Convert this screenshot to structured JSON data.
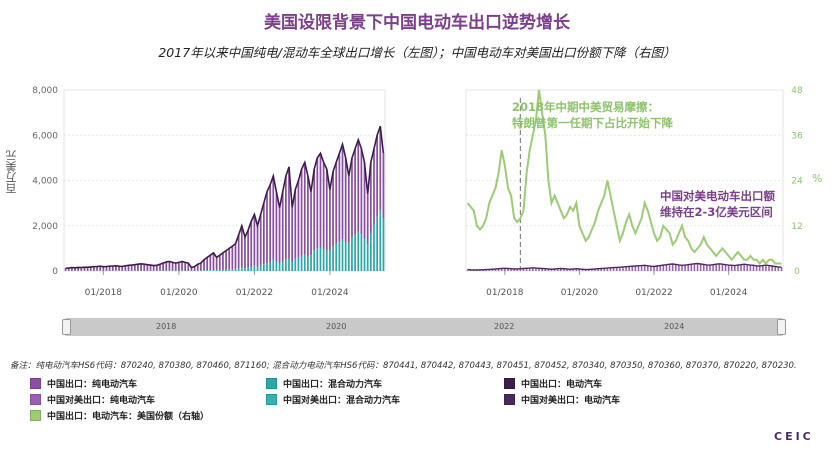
{
  "header": {
    "title": "美国设限背景下中国电动车出口逆势增长",
    "subtitle": "2017年以来中国纯电/混动车全球出口增长（左图）；中国电动车对美国出口份额下降（右图）"
  },
  "colors": {
    "bev_world": "#8a4fa3",
    "phev_world": "#2aa8a8",
    "ev_world": "#3b1f4a",
    "bev_us": "#9c5fb5",
    "phev_us": "#33b3b3",
    "ev_us": "#4a2a5c",
    "us_share": "#9ccc74"
  },
  "chart_data": [
    {
      "type": "bar",
      "name": "left-panel",
      "ylabel": "百万美元",
      "ylim": [
        0,
        8000
      ],
      "yticks": [
        "0",
        "2,000",
        "4,000",
        "6,000",
        "8,000"
      ],
      "xticks": [
        "01/2018",
        "01/2020",
        "01/2022",
        "01/2024"
      ],
      "x_range": [
        "01/2017",
        "06/2025"
      ],
      "series": [
        {
          "name": "中国出口：纯电动汽车",
          "type": "stacked-bar"
        },
        {
          "name": "中国出口：混合动力汽车",
          "type": "stacked-bar"
        },
        {
          "name": "中国出口：电动汽车",
          "type": "line"
        }
      ],
      "ev_total_monthly": [
        120,
        130,
        150,
        140,
        160,
        150,
        170,
        165,
        180,
        190,
        200,
        210,
        190,
        200,
        210,
        220,
        230,
        210,
        200,
        230,
        250,
        260,
        280,
        300,
        320,
        300,
        280,
        260,
        240,
        250,
        300,
        350,
        400,
        420,
        380,
        350,
        380,
        420,
        380,
        350,
        150,
        200,
        300,
        350,
        500,
        600,
        700,
        800,
        600,
        700,
        800,
        900,
        1000,
        1100,
        1200,
        1600,
        2000,
        1500,
        1800,
        2200,
        2500,
        2000,
        2500,
        3000,
        3500,
        3800,
        4200,
        3500,
        2800,
        3500,
        4200,
        4600,
        2800,
        3600,
        4000,
        4500,
        4800,
        4200,
        3500,
        4500,
        5000,
        5200,
        4800,
        4500,
        3600,
        4400,
        4800,
        5200,
        5600,
        5000,
        4200,
        5000,
        5400,
        5800,
        5400,
        4800,
        3400,
        4800,
        5400,
        6000,
        6400,
        5200
      ],
      "phev_share_monthly": [
        0.05,
        0.05,
        0.05,
        0.05,
        0.05,
        0.05,
        0.05,
        0.05,
        0.05,
        0.05,
        0.05,
        0.05,
        0.05,
        0.05,
        0.05,
        0.05,
        0.05,
        0.05,
        0.05,
        0.05,
        0.05,
        0.05,
        0.05,
        0.05,
        0.06,
        0.06,
        0.06,
        0.06,
        0.06,
        0.06,
        0.06,
        0.06,
        0.06,
        0.06,
        0.06,
        0.06,
        0.06,
        0.06,
        0.06,
        0.06,
        0.06,
        0.06,
        0.06,
        0.06,
        0.06,
        0.06,
        0.06,
        0.06,
        0.07,
        0.07,
        0.07,
        0.07,
        0.07,
        0.07,
        0.08,
        0.08,
        0.08,
        0.08,
        0.08,
        0.08,
        0.1,
        0.1,
        0.1,
        0.1,
        0.1,
        0.1,
        0.12,
        0.12,
        0.12,
        0.12,
        0.12,
        0.12,
        0.15,
        0.15,
        0.15,
        0.15,
        0.15,
        0.15,
        0.2,
        0.2,
        0.2,
        0.2,
        0.2,
        0.2,
        0.25,
        0.25,
        0.25,
        0.25,
        0.25,
        0.25,
        0.3,
        0.3,
        0.3,
        0.3,
        0.3,
        0.3,
        0.35,
        0.35,
        0.38,
        0.4,
        0.42,
        0.45
      ]
    },
    {
      "type": "line",
      "name": "right-panel",
      "ylabel": "%",
      "y2lim": [
        0,
        48
      ],
      "y2ticks": [
        "0",
        "12",
        "24",
        "36",
        "48"
      ],
      "xticks": [
        "01/2018",
        "01/2020",
        "01/2022",
        "01/2024"
      ],
      "x_range": [
        "01/2017",
        "06/2025"
      ],
      "event_marker": "06/2018",
      "series": [
        {
          "name": "中国出口：电动汽车：美国份额（右轴）",
          "axis": "right",
          "values": [
            18,
            17,
            16,
            12,
            11,
            12,
            14,
            18,
            20,
            22,
            26,
            32,
            28,
            22,
            20,
            14,
            13,
            14,
            16,
            26,
            32,
            36,
            40,
            48,
            42,
            36,
            24,
            18,
            20,
            18,
            16,
            14,
            15,
            17,
            16,
            18,
            12,
            10,
            8,
            9,
            11,
            13,
            16,
            18,
            20,
            24,
            20,
            16,
            12,
            8,
            10,
            13,
            15,
            12,
            10,
            12,
            14,
            18,
            16,
            13,
            10,
            8,
            9,
            12,
            11,
            10,
            7,
            8,
            10,
            12,
            9,
            8,
            6,
            5,
            6,
            7,
            9,
            7,
            6,
            5,
            4,
            5,
            6,
            5,
            4,
            3,
            4,
            5,
            4,
            3,
            3,
            4,
            3,
            3,
            2,
            3,
            2,
            3,
            3,
            2,
            2,
            2
          ]
        },
        {
          "name": "中国对美出口：电动汽车",
          "axis": "left",
          "values": [
            60,
            55,
            50,
            48,
            52,
            55,
            60,
            70,
            80,
            90,
            100,
            110,
            120,
            110,
            100,
            90,
            95,
            100,
            110,
            120,
            130,
            140,
            130,
            120,
            110,
            100,
            90,
            80,
            90,
            100,
            110,
            100,
            90,
            80,
            90,
            100,
            90,
            80,
            60,
            70,
            80,
            90,
            100,
            110,
            120,
            130,
            140,
            150,
            160,
            170,
            180,
            190,
            200,
            210,
            220,
            230,
            240,
            250,
            230,
            210,
            200,
            220,
            240,
            260,
            280,
            300,
            310,
            290,
            270,
            250,
            260,
            280,
            300,
            320,
            330,
            310,
            290,
            270,
            260,
            280,
            300,
            320,
            300,
            280,
            260,
            250,
            240,
            260,
            280,
            300,
            280,
            260,
            250,
            230,
            220,
            240,
            260,
            240,
            220,
            200,
            180,
            170
          ]
        }
      ]
    }
  ],
  "axes": {
    "left_y_title": "百万美元",
    "right_y_title": "%"
  },
  "annotations": {
    "green_line1": "2018年中期中美贸易摩擦：",
    "green_line2": "特朗普第一任期下占比开始下降",
    "purple_line1": "中国对美电动车出口额",
    "purple_line2": "维持在2-3亿美元区间"
  },
  "navigator": {
    "labels": [
      "2018",
      "2020",
      "2022",
      "2024"
    ]
  },
  "note": "备注：纯电动汽车HS6代码：870240, 870380, 870460, 871160; 混合动力电动汽车HS6代码：870441, 870442, 870443, 870451, 870452, 870340, 870350, 870360, 870370, 870220, 870230.",
  "legend": [
    {
      "label": "中国出口：纯电动汽车",
      "color": "#8a4fa3"
    },
    {
      "label": "中国出口：混合动力汽车",
      "color": "#2aa8a8"
    },
    {
      "label": "中国出口：电动汽车",
      "color": "#3b1f4a"
    },
    {
      "label": "中国对美出口：纯电动汽车",
      "color": "#9c5fb5"
    },
    {
      "label": "中国对美出口：混合动力汽车",
      "color": "#33b3b3"
    },
    {
      "label": "中国对美出口：电动汽车",
      "color": "#4a2a5c"
    },
    {
      "label": "中国出口：电动汽车：美国份额（右轴）",
      "color": "#9ccc74"
    }
  ],
  "logo": {
    "text": "CEIC"
  }
}
